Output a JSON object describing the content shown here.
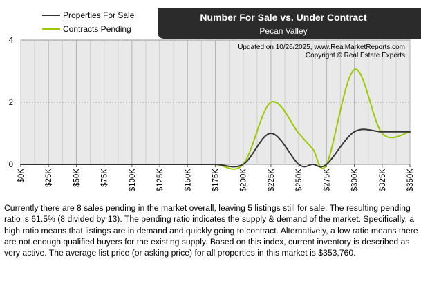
{
  "chart_data": {
    "type": "line",
    "title": "Number For Sale vs. Under Contract",
    "subtitle": "Pecan Valley",
    "update_note": "Updated on 10/26/2025, www.RealMarketReports.com",
    "copyright": "Copyright © Real Estate Experts",
    "x_labels": [
      "$0K",
      "$25K",
      "$50K",
      "$75K",
      "$100K",
      "$125K",
      "$150K",
      "$175K",
      "$200K",
      "$225K",
      "$250K",
      "$275K",
      "$300K",
      "$325K",
      "$350K"
    ],
    "xlim": [
      0,
      350
    ],
    "ylim": [
      0,
      4
    ],
    "y_ticks": [
      0,
      2,
      4
    ],
    "grid": true,
    "legend_position": "top-left",
    "series": [
      {
        "name": "Properties For Sale",
        "color": "#333333",
        "points": [
          [
            0,
            0
          ],
          [
            25,
            0
          ],
          [
            50,
            0
          ],
          [
            75,
            0
          ],
          [
            100,
            0
          ],
          [
            125,
            0
          ],
          [
            150,
            0
          ],
          [
            175,
            0
          ],
          [
            200,
            0
          ],
          [
            225,
            1
          ],
          [
            250,
            0
          ],
          [
            262.5,
            0
          ],
          [
            275,
            0
          ],
          [
            300,
            1.05
          ],
          [
            325,
            1.05
          ],
          [
            350,
            1.05
          ]
        ]
      },
      {
        "name": "Contracts Pending",
        "color": "#99cc00",
        "points": [
          [
            0,
            0
          ],
          [
            25,
            0
          ],
          [
            50,
            0
          ],
          [
            75,
            0
          ],
          [
            100,
            0
          ],
          [
            125,
            0
          ],
          [
            150,
            0
          ],
          [
            175,
            0
          ],
          [
            200,
            0
          ],
          [
            225,
            2
          ],
          [
            250,
            1
          ],
          [
            262.5,
            0.5
          ],
          [
            275,
            0
          ],
          [
            300,
            3.05
          ],
          [
            325,
            1
          ],
          [
            350,
            1.05
          ]
        ]
      }
    ]
  },
  "summary_text": "Currently there are 8 sales pending in the market overall, leaving 5 listings still for sale.  The resulting pending ratio is 61.5% (8 divided by 13).  The pending ratio indicates the supply & demand of the market.  Specifically, a high ratio means that listings are in demand and quickly going to contract.  Alternatively, a low ratio means there are not enough qualified buyers for the existing supply.  Based on this index, current inventory is described as very active.  The average list price (or asking price) for all properties in this market is $353,760."
}
